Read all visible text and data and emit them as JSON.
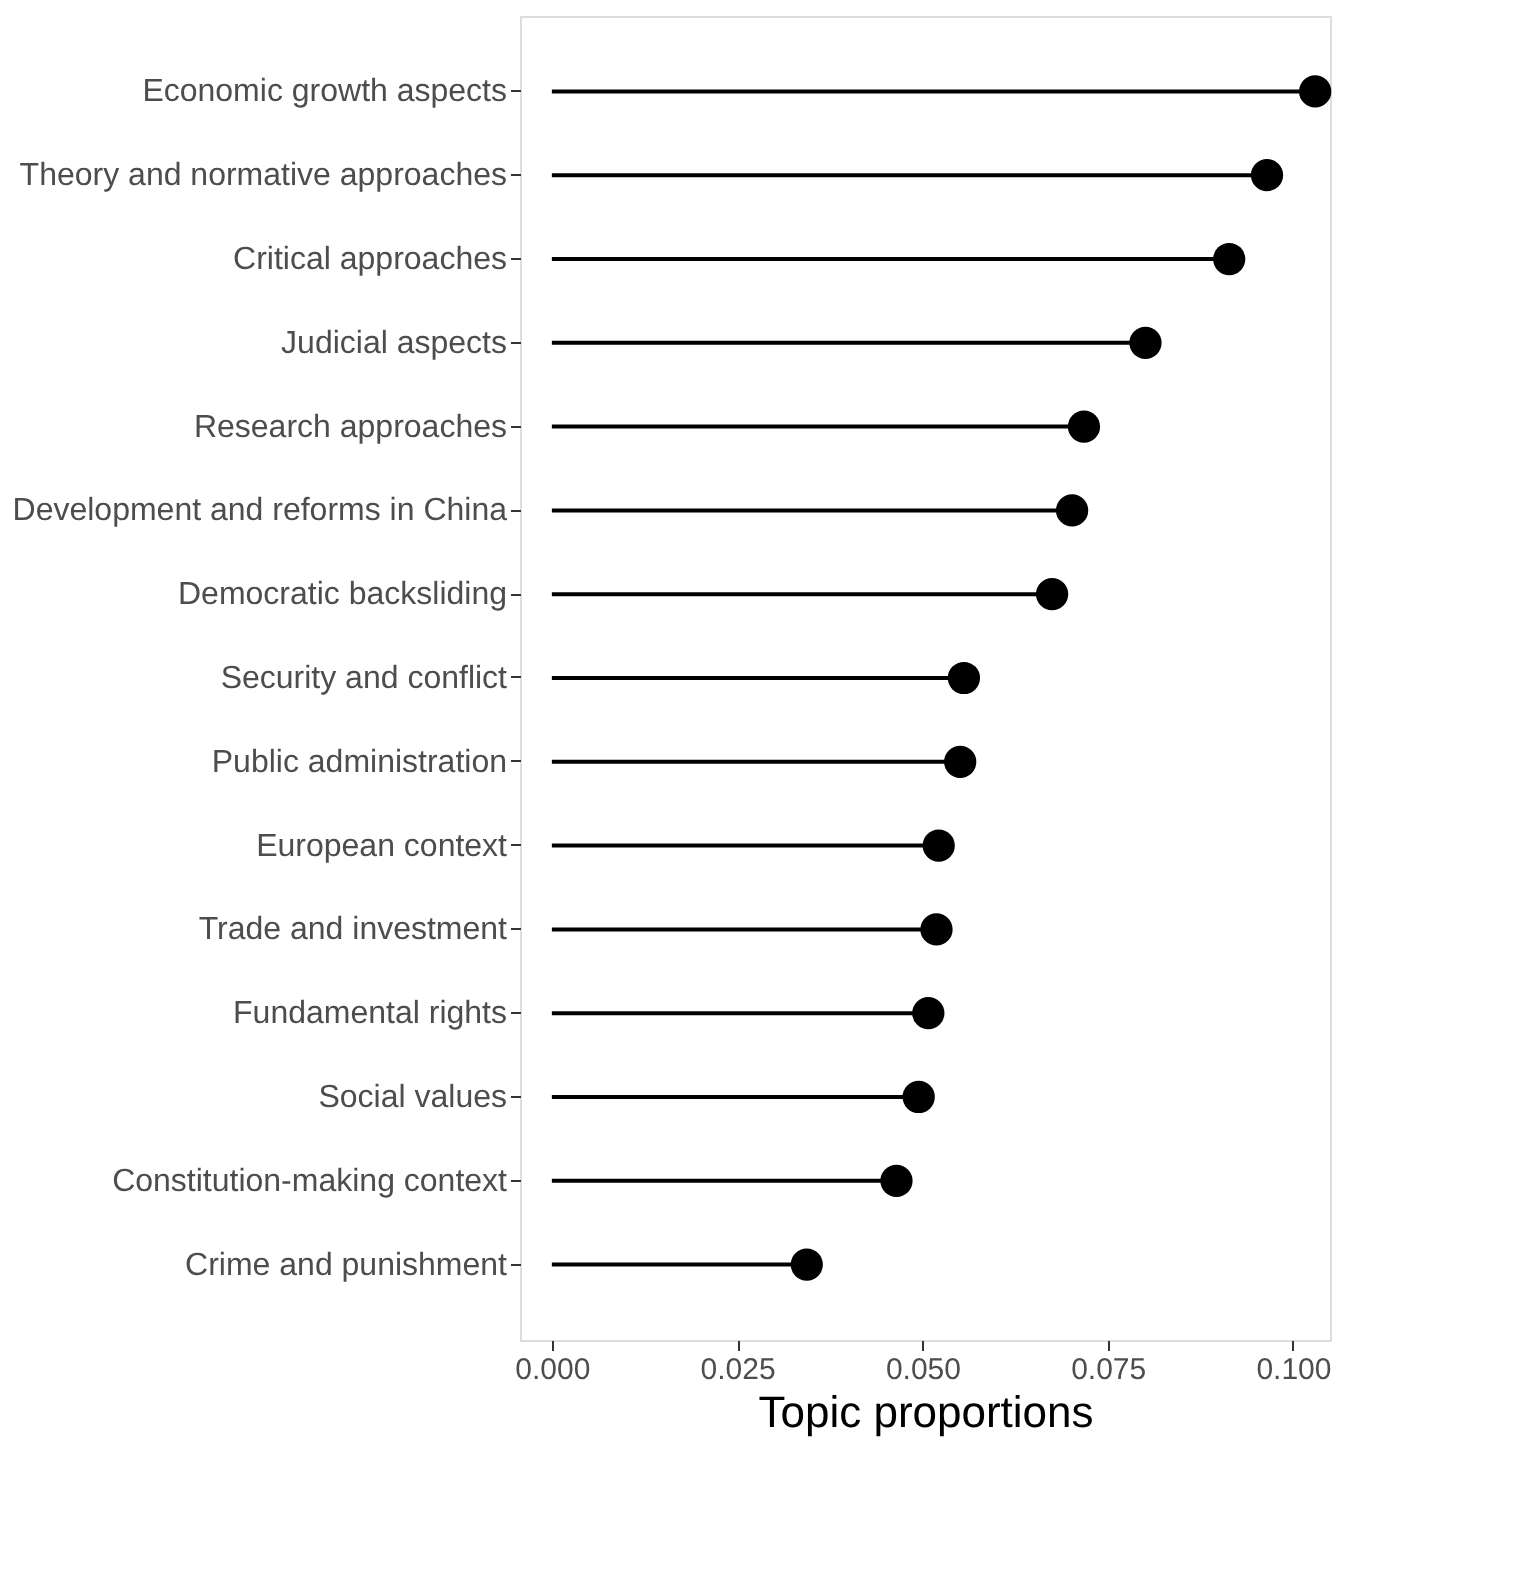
{
  "chart_data": {
    "type": "lollipop",
    "orientation": "horizontal",
    "xlabel": "Topic proportions",
    "categories": [
      "Economic growth aspects",
      "Theory and normative approaches",
      "Critical approaches",
      "Judicial aspects",
      "Research approaches",
      "Development and reforms in China",
      "Democratic backsliding",
      "Security and conflict",
      "Public administration",
      "European context",
      "Trade and investment",
      "Fundamental rights",
      "Social values",
      "Constitution-making context",
      "Crime and punishment"
    ],
    "values": [
      0.103,
      0.0965,
      0.0914,
      0.0801,
      0.0718,
      0.0702,
      0.0675,
      0.0556,
      0.0551,
      0.0522,
      0.0519,
      0.0508,
      0.0495,
      0.0465,
      0.0344
    ],
    "color": "#000000",
    "marker": "circle",
    "grid": false,
    "xlim": [
      -0.0043,
      0.105
    ],
    "xticks": [
      {
        "value": 0,
        "label": "0.000"
      },
      {
        "value": 0.025,
        "label": "0.025"
      },
      {
        "value": 0.05,
        "label": "0.050"
      },
      {
        "value": 0.075,
        "label": "0.075"
      },
      {
        "value": 0.1,
        "label": "0.100"
      }
    ]
  }
}
